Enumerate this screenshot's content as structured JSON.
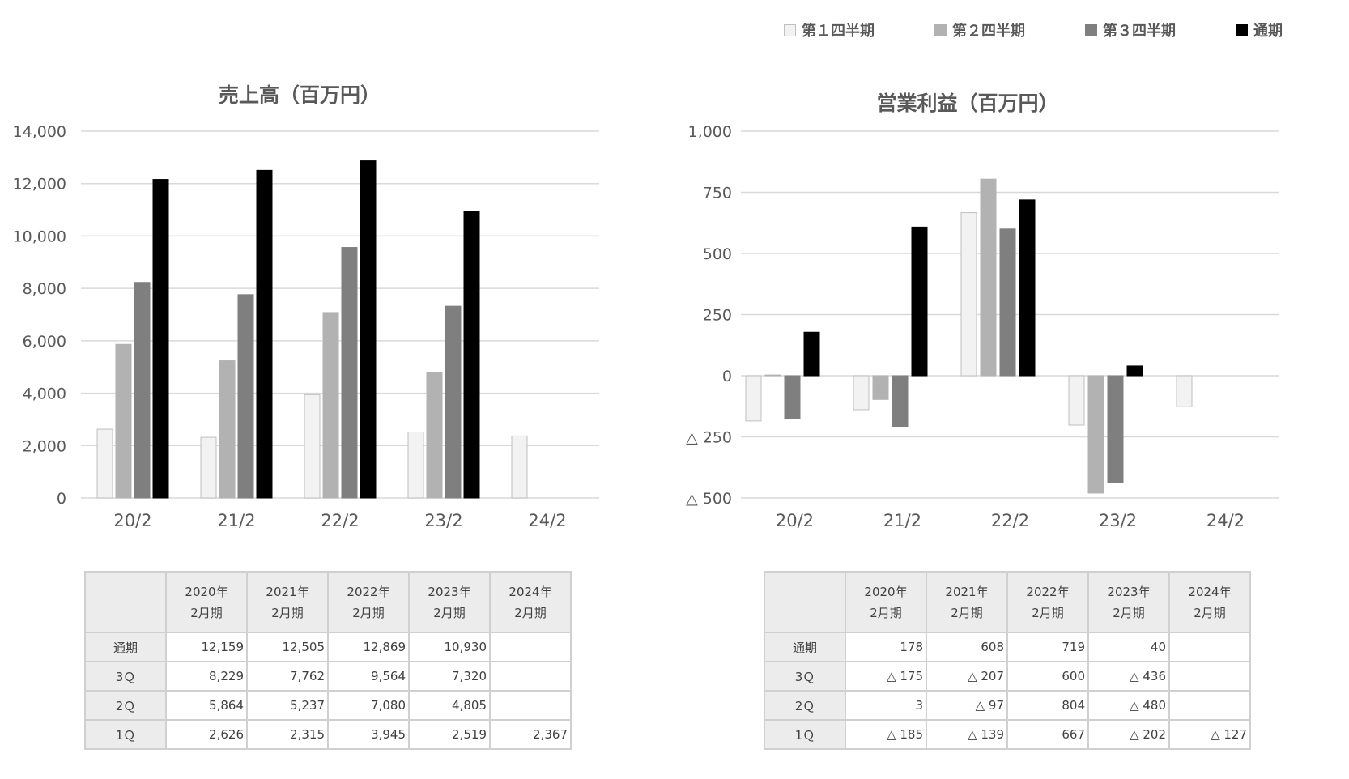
{
  "legend": [
    {
      "label": "第１四半期",
      "color": "#f2f2f2",
      "stroke": "#bfbfbf"
    },
    {
      "label": "第２四半期",
      "color": "#b2b2b2",
      "stroke": "#b2b2b2"
    },
    {
      "label": "第３四半期",
      "color": "#7f7f7f",
      "stroke": "#7f7f7f"
    },
    {
      "label": "通期",
      "color": "#000000",
      "stroke": "#000000"
    }
  ],
  "chart_data": [
    {
      "type": "bar",
      "title": "売上高（百万円）",
      "categories": [
        "20/2",
        "21/2",
        "22/2",
        "23/2",
        "24/2"
      ],
      "ylim": [
        0,
        14000
      ],
      "yticks": [
        0,
        2000,
        4000,
        6000,
        8000,
        10000,
        12000,
        14000
      ],
      "ytick_labels": [
        "0",
        "2,000",
        "4,000",
        "6,000",
        "8,000",
        "10,000",
        "12,000",
        "14,000"
      ],
      "grid": true,
      "legend_position": "top-right",
      "series": [
        {
          "name": "第１四半期",
          "values": [
            2626,
            2315,
            3945,
            2519,
            2367
          ]
        },
        {
          "name": "第２四半期",
          "values": [
            5864,
            5237,
            7080,
            4805,
            null
          ]
        },
        {
          "name": "第３四半期",
          "values": [
            8229,
            7762,
            9564,
            7320,
            null
          ]
        },
        {
          "name": "通期",
          "values": [
            12159,
            12505,
            12869,
            10930,
            null
          ]
        }
      ]
    },
    {
      "type": "bar",
      "title": "営業利益（百万円）",
      "categories": [
        "20/2",
        "21/2",
        "22/2",
        "23/2",
        "24/2"
      ],
      "ylim": [
        -500,
        1000
      ],
      "yticks": [
        -500,
        -250,
        0,
        250,
        500,
        750,
        1000
      ],
      "ytick_labels": [
        "△ 500",
        "△ 250",
        "0",
        "250",
        "500",
        "750",
        "1,000"
      ],
      "grid": true,
      "legend_position": "top-right",
      "series": [
        {
          "name": "第１四半期",
          "values": [
            -185,
            -139,
            667,
            -202,
            -127
          ]
        },
        {
          "name": "第２四半期",
          "values": [
            3,
            -97,
            804,
            -480,
            null
          ]
        },
        {
          "name": "第３四半期",
          "values": [
            -175,
            -207,
            600,
            -436,
            null
          ]
        },
        {
          "name": "通期",
          "values": [
            178,
            608,
            719,
            40,
            null
          ]
        }
      ]
    }
  ],
  "tables": {
    "sales": {
      "headers": [
        [
          "2020年",
          "2月期"
        ],
        [
          "2021年",
          "2月期"
        ],
        [
          "2022年",
          "2月期"
        ],
        [
          "2023年",
          "2月期"
        ],
        [
          "2024年",
          "2月期"
        ]
      ],
      "rows": [
        {
          "label": "通期",
          "values": [
            "12,159",
            "12,505",
            "12,869",
            "10,930",
            ""
          ]
        },
        {
          "label": "3Ｑ",
          "values": [
            "8,229",
            "7,762",
            "9,564",
            "7,320",
            ""
          ]
        },
        {
          "label": "2Ｑ",
          "values": [
            "5,864",
            "5,237",
            "7,080",
            "4,805",
            ""
          ]
        },
        {
          "label": "1Ｑ",
          "values": [
            "2,626",
            "2,315",
            "3,945",
            "2,519",
            "2,367"
          ]
        }
      ]
    },
    "profit": {
      "headers": [
        [
          "2020年",
          "2月期"
        ],
        [
          "2021年",
          "2月期"
        ],
        [
          "2022年",
          "2月期"
        ],
        [
          "2023年",
          "2月期"
        ],
        [
          "2024年",
          "2月期"
        ]
      ],
      "rows": [
        {
          "label": "通期",
          "values": [
            "178",
            "608",
            "719",
            "40",
            ""
          ]
        },
        {
          "label": "3Ｑ",
          "values": [
            "△ 175",
            "△ 207",
            "600",
            "△ 436",
            ""
          ]
        },
        {
          "label": "2Ｑ",
          "values": [
            "3",
            "△ 97",
            "804",
            "△ 480",
            ""
          ]
        },
        {
          "label": "1Ｑ",
          "values": [
            "△ 185",
            "△ 139",
            "667",
            "△ 202",
            "△ 127"
          ]
        }
      ]
    }
  }
}
